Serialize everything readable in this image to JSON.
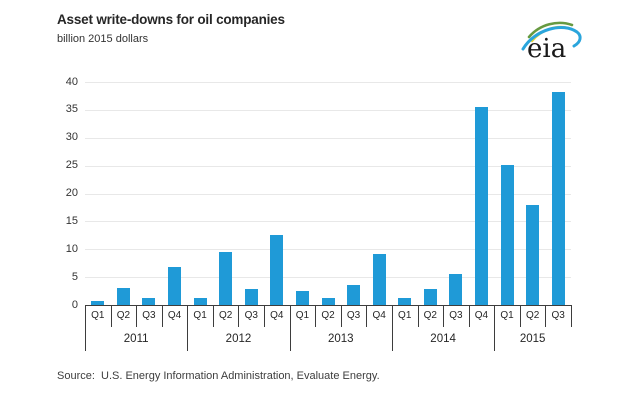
{
  "header": {
    "title": "Asset write-downs for oil companies",
    "subtitle": "billion 2015 dollars"
  },
  "logo": {
    "text": "eia"
  },
  "source": "Source:  U.S. Energy Information Administration, Evaluate Energy.",
  "chart_data": {
    "type": "bar",
    "title": "Asset write-downs for oil companies",
    "ylabel": "billion 2015 dollars",
    "xlabel": "",
    "ylim": [
      0,
      40
    ],
    "yticks": [
      0,
      5,
      10,
      15,
      20,
      25,
      30,
      35,
      40
    ],
    "grid": true,
    "legend": "none",
    "bar_color": "#1f9ad7",
    "categories": [
      "Q1",
      "Q2",
      "Q3",
      "Q4",
      "Q1",
      "Q2",
      "Q3",
      "Q4",
      "Q1",
      "Q2",
      "Q3",
      "Q4",
      "Q1",
      "Q2",
      "Q3",
      "Q4",
      "Q1",
      "Q2",
      "Q3"
    ],
    "groups": [
      {
        "label": "2011",
        "count": 4
      },
      {
        "label": "2012",
        "count": 4
      },
      {
        "label": "2013",
        "count": 4
      },
      {
        "label": "2014",
        "count": 4
      },
      {
        "label": "2015",
        "count": 3
      }
    ],
    "values": [
      0.8,
      3.0,
      1.2,
      6.8,
      1.3,
      9.5,
      2.9,
      12.5,
      2.5,
      1.2,
      3.5,
      9.2,
      1.2,
      2.9,
      5.5,
      35.6,
      25.2,
      18.0,
      38.2
    ]
  }
}
